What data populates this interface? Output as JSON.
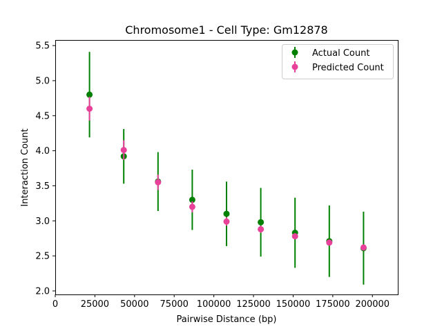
{
  "chart_data": {
    "type": "scatter",
    "title": "Chromosome1 - Cell Type: Gm12878",
    "xlabel": "Pairwise Distance (bp)",
    "ylabel": "Interaction Count",
    "xlim": [
      0,
      216000
    ],
    "ylim": [
      1.95,
      5.58
    ],
    "xticks": [
      0,
      25000,
      50000,
      75000,
      100000,
      125000,
      150000,
      175000,
      200000
    ],
    "xtick_labels": [
      "0",
      "25000",
      "50000",
      "75000",
      "100000",
      "125000",
      "150000",
      "175000",
      "200000"
    ],
    "yticks": [
      2.0,
      2.5,
      3.0,
      3.5,
      4.0,
      4.5,
      5.0,
      5.5
    ],
    "ytick_labels": [
      "2.0",
      "2.5",
      "3.0",
      "3.5",
      "4.0",
      "4.5",
      "5.0",
      "5.5"
    ],
    "grid": false,
    "legend_position": "top-right",
    "series": [
      {
        "name": "Actual Count",
        "color": "#008000",
        "x": [
          21600,
          43200,
          64800,
          86400,
          108000,
          129600,
          151200,
          172800,
          194400
        ],
        "y": [
          4.8,
          3.92,
          3.56,
          3.3,
          3.1,
          2.98,
          2.83,
          2.71,
          2.61
        ],
        "err": [
          0.61,
          0.39,
          0.42,
          0.43,
          0.46,
          0.49,
          0.5,
          0.51,
          0.52
        ]
      },
      {
        "name": "Predicted Count",
        "color": "#e8419a",
        "x": [
          21600,
          43200,
          64800,
          86400,
          108000,
          129600,
          151200,
          172800,
          194400
        ],
        "y": [
          4.6,
          4.01,
          3.55,
          3.2,
          2.99,
          2.88,
          2.78,
          2.69,
          2.62
        ],
        "err": [
          0.17,
          0.14,
          0.11,
          0.08,
          0.06,
          0.05,
          0.04,
          0.03,
          0.02
        ]
      }
    ]
  }
}
